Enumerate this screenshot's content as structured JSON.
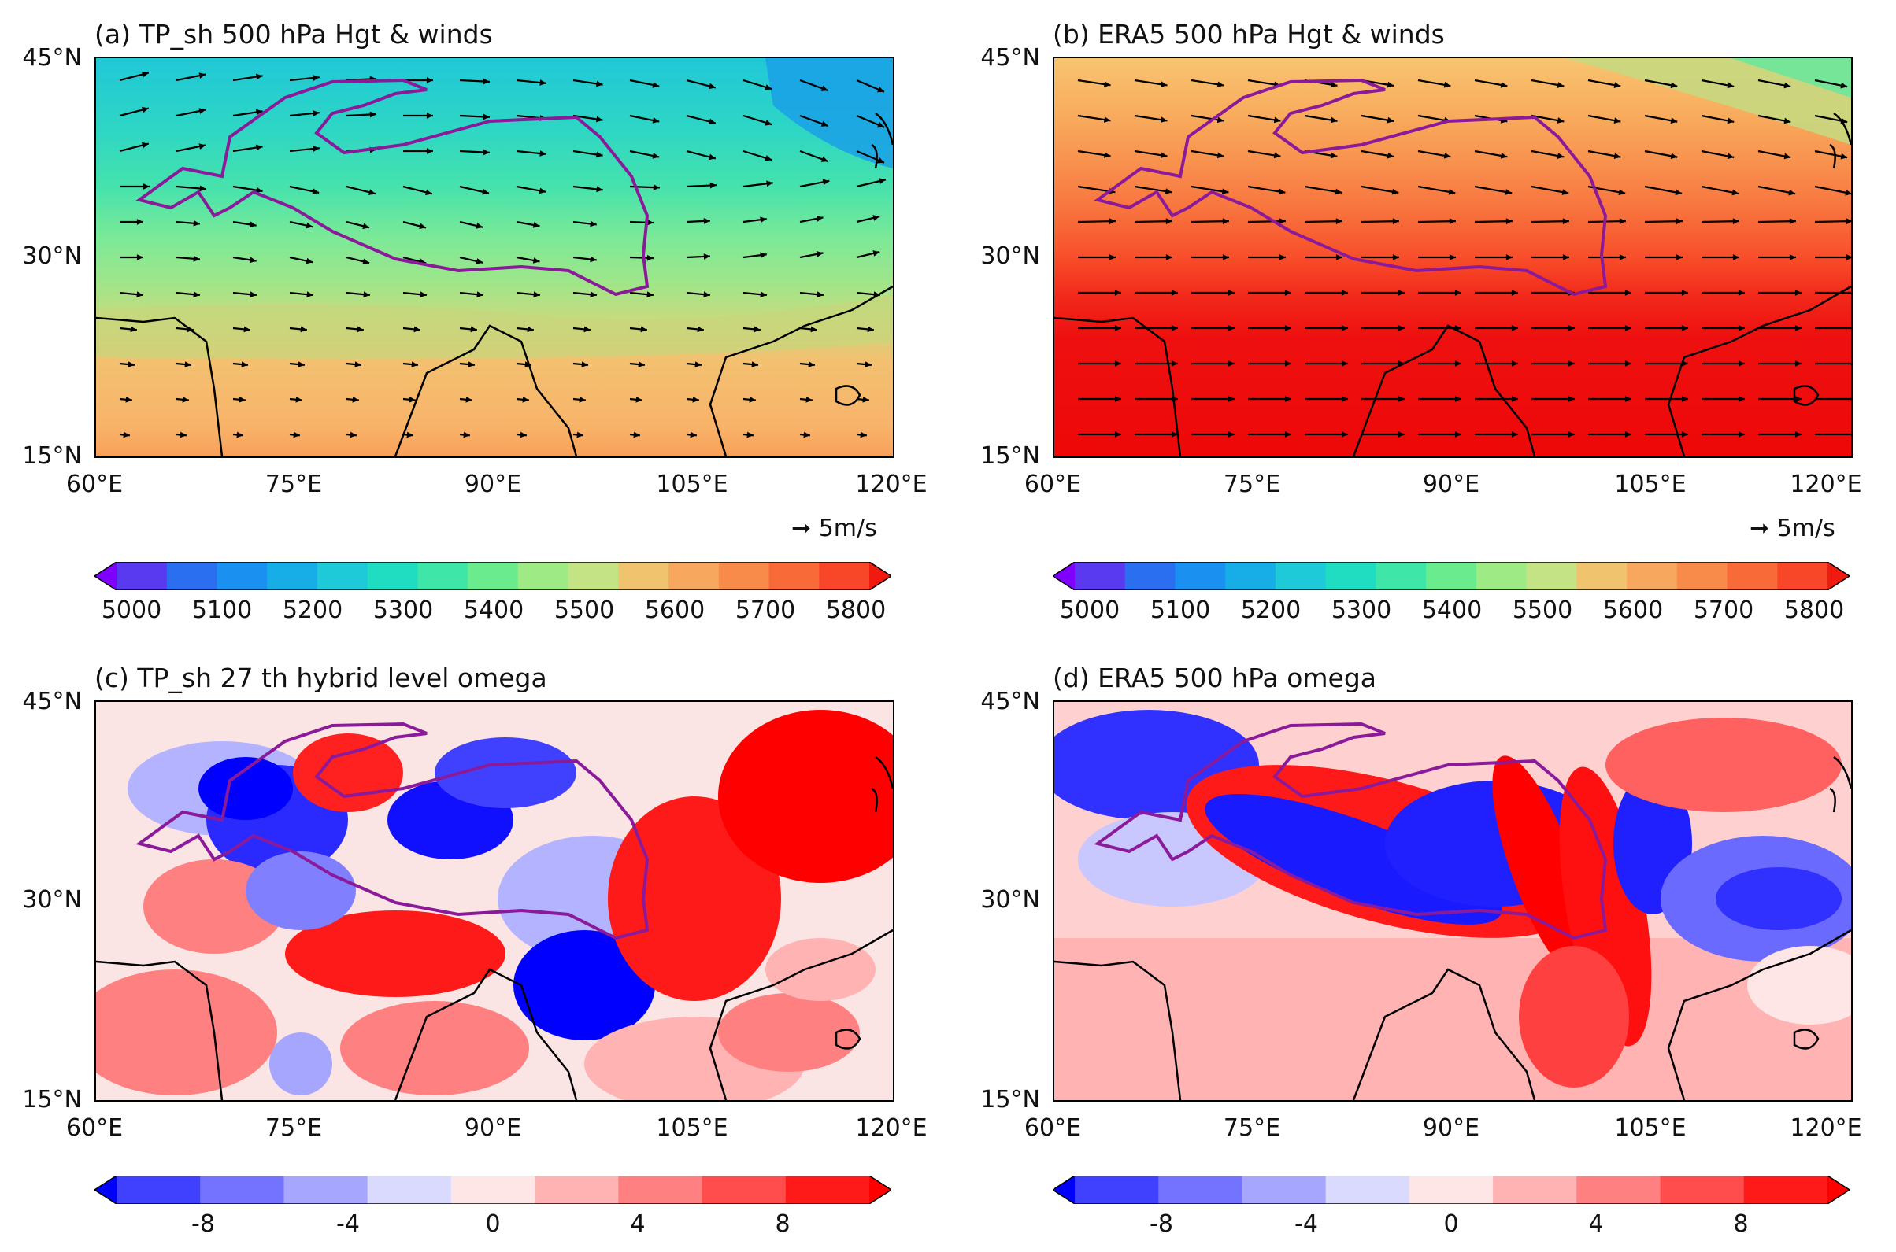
{
  "panels": [
    {
      "id": "a",
      "title": "(a) TP_sh 500 hPa Hgt & winds"
    },
    {
      "id": "b",
      "title": "(b) ERA5 500 hPa Hgt & winds"
    },
    {
      "id": "c",
      "title": "(c) TP_sh 27 th hybrid level omega"
    },
    {
      "id": "d",
      "title": "(d) ERA5 500 hPa omega"
    }
  ],
  "axes": {
    "lat_labels": [
      "45°N",
      "30°N",
      "15°N"
    ],
    "lon_labels": [
      "60°E",
      "75°E",
      "90°E",
      "105°E",
      "120°E"
    ]
  },
  "wind_key": {
    "label": "5m/s"
  },
  "hgt_colorbar": {
    "ticks": [
      "5000",
      "5100",
      "5200",
      "5300",
      "5400",
      "5500",
      "5600",
      "5700",
      "5800"
    ],
    "colors": [
      "#7f00ff",
      "#5a3af0",
      "#2a6ff0",
      "#1a90f0",
      "#17aee8",
      "#1ec9d8",
      "#20dcc0",
      "#3ee6a8",
      "#6aeb8e",
      "#9eeb85",
      "#c4e385",
      "#f0c36e",
      "#f8a85e",
      "#f88a4a",
      "#f86a38",
      "#f84628",
      "#f01a10"
    ]
  },
  "omega_colorbar": {
    "ticks": [
      "-8",
      "-4",
      "0",
      "4",
      "8"
    ],
    "colors": [
      "#0000ff",
      "#4040ff",
      "#7373ff",
      "#a6a6ff",
      "#dadaff",
      "#ffe6e6",
      "#ffb3b3",
      "#ff8080",
      "#ff4d4d",
      "#ff1a1a",
      "#ff0000"
    ]
  }
}
